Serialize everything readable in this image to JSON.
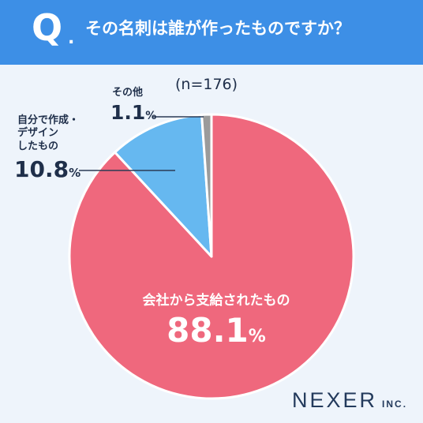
{
  "header": {
    "q_mark": "Q",
    "q_dot": ".",
    "question": "その名刺は誰が作ったものですか？"
  },
  "sample_label": "(n=176)",
  "labels": {
    "self_made": {
      "line1": "自分で作成・",
      "line2": "デザイン",
      "line3": "したもの",
      "value": "10.8",
      "unit": "%"
    },
    "other": {
      "line1": "その他",
      "value": "1.1",
      "unit": "%"
    },
    "company": {
      "line1": "会社から支給されたもの",
      "value": "88.1",
      "unit": "%"
    }
  },
  "logo": {
    "main": "NEXER",
    "sub": "INC."
  },
  "colors": {
    "header_bg": "#3d8fe6",
    "background": "#eef4fb",
    "company": "#ef687d",
    "self_made": "#66b8f0",
    "other": "#9b9b9b"
  },
  "chart_data": {
    "type": "pie",
    "categories": [
      "会社から支給されたもの",
      "自分で作成・デザインしたもの",
      "その他"
    ],
    "values": [
      88.1,
      10.8,
      1.1
    ],
    "unit": "%",
    "n": 176,
    "colors": [
      "#ef687d",
      "#66b8f0",
      "#9b9b9b"
    ]
  }
}
